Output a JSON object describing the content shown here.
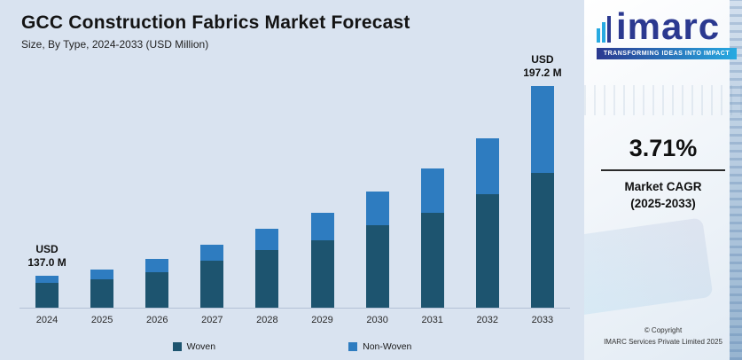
{
  "header": {
    "title": "GCC Construction Fabrics Market Forecast",
    "subtitle": "Size, By Type, 2024-2033 (USD Million)"
  },
  "chart_data": {
    "type": "bar",
    "stacked": true,
    "units": "USD Million",
    "grid": false,
    "legend_position": "bottom",
    "categories": [
      "2024",
      "2025",
      "2026",
      "2027",
      "2028",
      "2029",
      "2030",
      "2031",
      "2032",
      "2033"
    ],
    "series": [
      {
        "name": "Woven",
        "color": "#1d546f",
        "values": [
          28,
          32,
          40,
          53,
          65,
          76,
          93,
          107,
          128,
          152
        ]
      },
      {
        "name": "Non-Woven",
        "color": "#2e7cc0",
        "values": [
          8,
          11,
          15,
          18,
          24,
          31,
          38,
          50,
          63,
          98
        ]
      }
    ],
    "value_scale": "relative bar height units; only endpoint totals are labeled on the chart",
    "known_totals": {
      "2024": 137.0,
      "2033": 197.2
    },
    "value_labels": [
      {
        "category": "2024",
        "lines": [
          "USD",
          "137.0 M"
        ]
      },
      {
        "category": "2033",
        "lines": [
          "USD",
          "197.2 M"
        ]
      }
    ]
  },
  "sidebar": {
    "logo_text": "imarc",
    "logo_tagline": "TRANSFORMING IDEAS INTO IMPACT",
    "cagr_value": "3.71%",
    "cagr_label_line1": "Market CAGR",
    "cagr_label_line2": "(2025-2033)",
    "copyright_line1": "© Copyright",
    "copyright_line2": "IMARC Services Private Limited 2025"
  },
  "colors": {
    "panel_bg": "#d9e3f0",
    "woven": "#1d546f",
    "nonwoven": "#2e7cc0",
    "logo_navy": "#2b3990",
    "logo_teal": "#27aae1"
  }
}
